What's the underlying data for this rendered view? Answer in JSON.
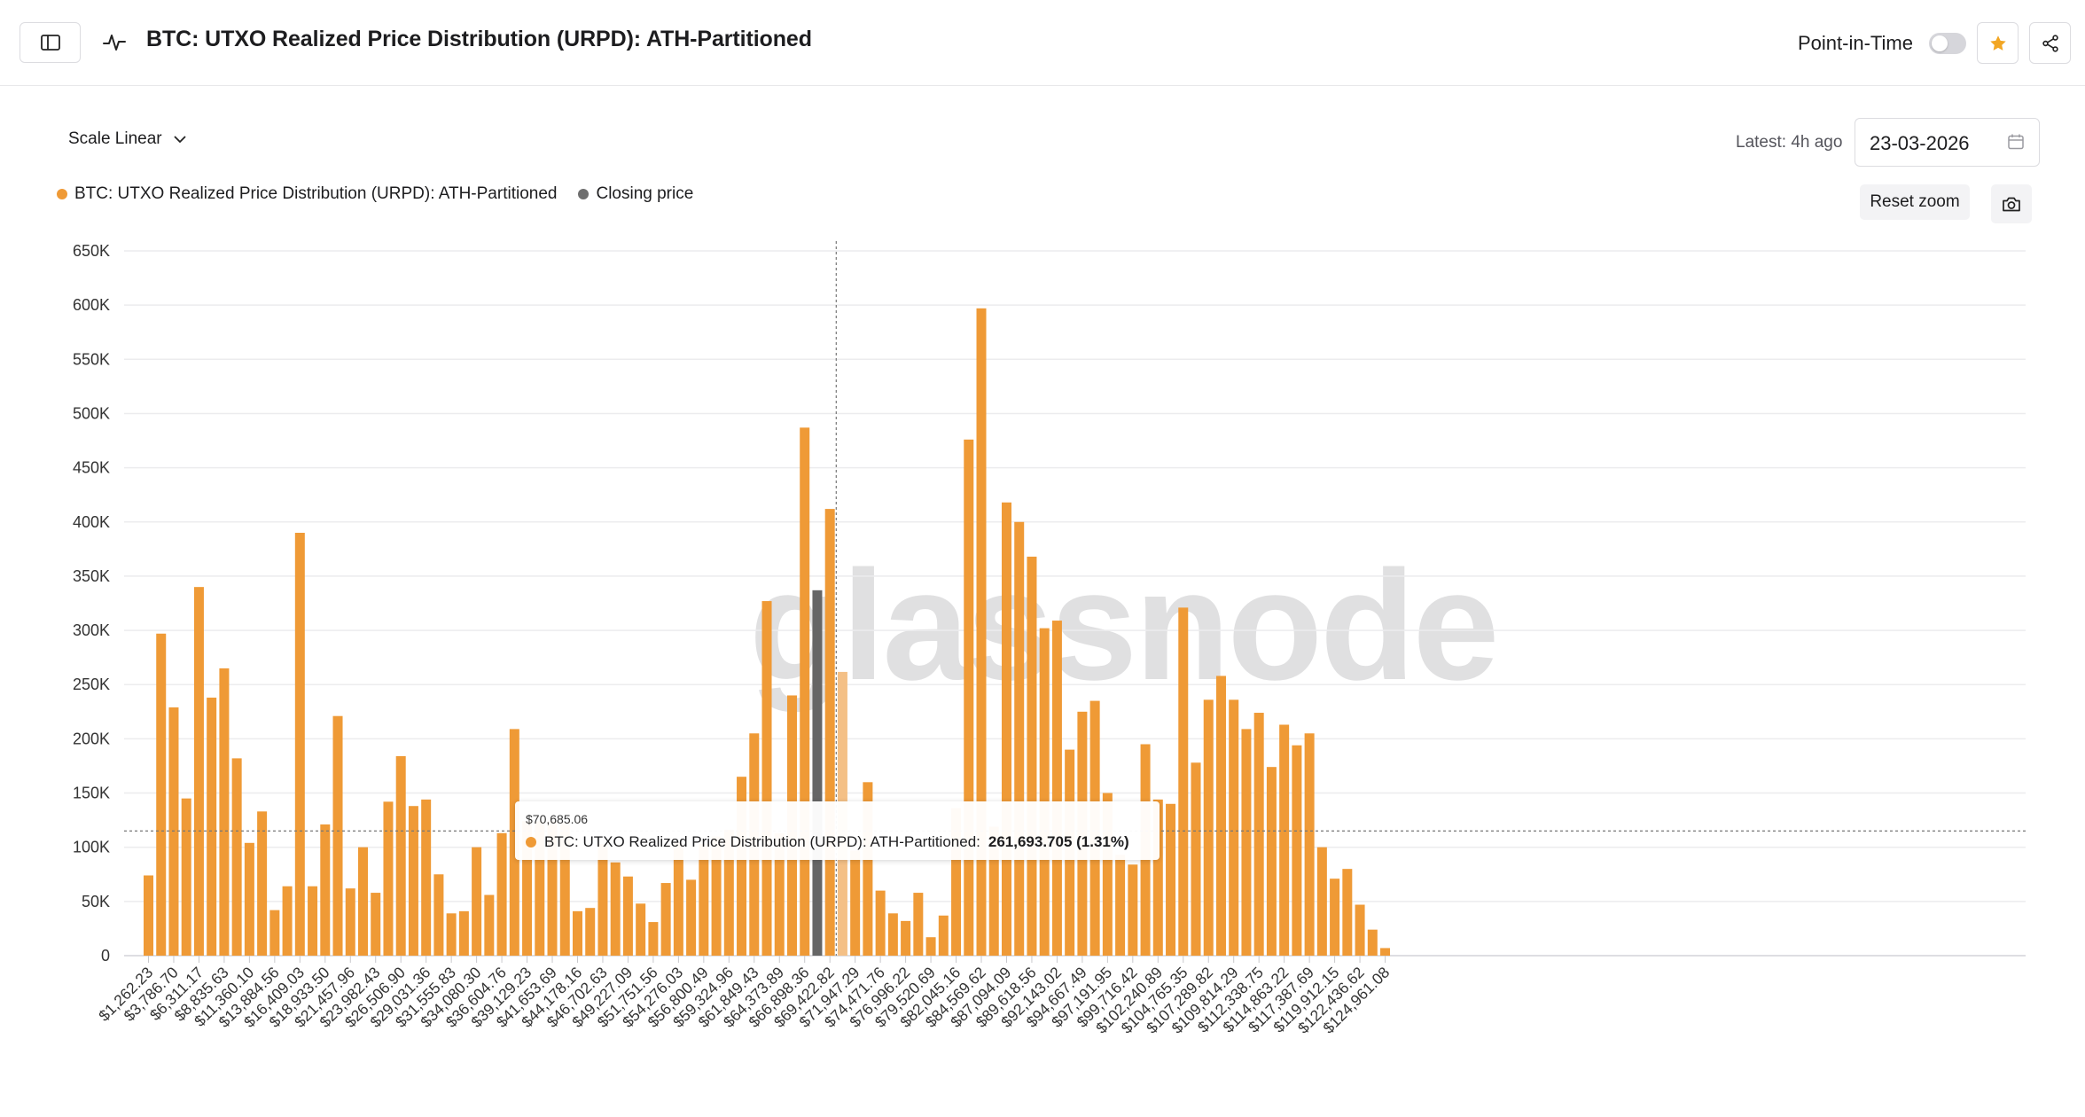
{
  "header": {
    "title": "BTC: UTXO Realized Price Distribution (URPD): ATH-Partitioned",
    "point_in_time_label": "Point-in-Time"
  },
  "controls": {
    "scale_label": "Scale Linear",
    "latest_label": "Latest: 4h ago",
    "date_value": "23-03-2026",
    "reset_zoom_label": "Reset zoom"
  },
  "legend": [
    {
      "label": "BTC: UTXO Realized Price Distribution (URPD): ATH-Partitioned",
      "color": "#ef9a36"
    },
    {
      "label": "Closing price",
      "color": "#6e6e6e"
    }
  ],
  "watermark": "glassnode",
  "tooltip": {
    "date": "$70,685.06",
    "series_label": "BTC: UTXO Realized Price Distribution (URPD): ATH-Partitioned:",
    "value": "261,693.705 (1.31%)"
  },
  "colors": {
    "bar": "#ef9a36",
    "bar_highlight": "#f4c086",
    "closing_bar": "#666666",
    "grid": "#ececee"
  },
  "chart_data": {
    "type": "bar",
    "xlabel": "",
    "ylabel": "",
    "ylim": [
      0,
      650000
    ],
    "y_ticks": [
      0,
      50000,
      100000,
      150000,
      200000,
      250000,
      300000,
      350000,
      400000,
      450000,
      500000,
      550000,
      600000,
      650000
    ],
    "y_tick_labels": [
      "0",
      "50K",
      "100K",
      "150K",
      "200K",
      "250K",
      "300K",
      "350K",
      "400K",
      "450K",
      "500K",
      "550K",
      "600K",
      "650K"
    ],
    "x_tick_labels": [
      "$1,262.23",
      "$3,786.70",
      "$6,311.17",
      "$8,835.63",
      "$11,360.10",
      "$13,884.56",
      "$16,409.03",
      "$18,933.50",
      "$21,457.96",
      "$23,982.43",
      "$26,506.90",
      "$29,031.36",
      "$31,555.83",
      "$34,080.30",
      "$36,604.76",
      "$39,129.23",
      "$41,653.69",
      "$44,178.16",
      "$46,702.63",
      "$49,227.09",
      "$51,751.56",
      "$54,276.03",
      "$56,800.49",
      "$59,324.96",
      "$61,849.43",
      "$64,373.89",
      "$66,898.36",
      "$69,422.82",
      "$71,947.29",
      "$74,471.76",
      "$76,996.22",
      "$79,520.69",
      "$82,045.16",
      "$84,569.62",
      "$87,094.09",
      "$89,618.56",
      "$92,143.02",
      "$94,667.49",
      "$97,191.95",
      "$99,716.42",
      "$102,240.89",
      "$104,765.35",
      "$107,289.82",
      "$109,814.29",
      "$112,338.75",
      "$114,863.22",
      "$117,387.69",
      "$119,912.15",
      "$122,436.62",
      "$124,961.08"
    ],
    "bin_width": 1262.233,
    "bin_start": 1262.23,
    "values": [
      74000,
      297000,
      229000,
      145000,
      340000,
      238000,
      265000,
      182000,
      104000,
      133000,
      42000,
      64000,
      390000,
      64000,
      121000,
      221000,
      62000,
      100000,
      58000,
      142000,
      184000,
      138000,
      144000,
      75000,
      39000,
      41000,
      100000,
      56000,
      113000,
      209000,
      124000,
      124000,
      124000,
      123000,
      41000,
      44000,
      103000,
      86000,
      73000,
      48000,
      31000,
      67000,
      104000,
      70000,
      103000,
      110000,
      116000,
      165000,
      205000,
      327000,
      113000,
      240000,
      487000,
      337000,
      412000,
      261694,
      97000,
      160000,
      60000,
      39000,
      32000,
      58000,
      17000,
      37000,
      136000,
      476000,
      597000,
      119000,
      418000,
      400000,
      368000,
      302000,
      309000,
      190000,
      225000,
      235000,
      150000,
      93000,
      84000,
      195000,
      144000,
      140000,
      321000,
      178000,
      236000,
      258000,
      236000,
      209000,
      224000,
      174000,
      213000,
      194000,
      205000,
      100000,
      71000,
      80000,
      47000,
      24000,
      7000
    ],
    "closing_price_bin_index": 53,
    "hover_bin_index": 55,
    "hover_line_value": 115000
  }
}
